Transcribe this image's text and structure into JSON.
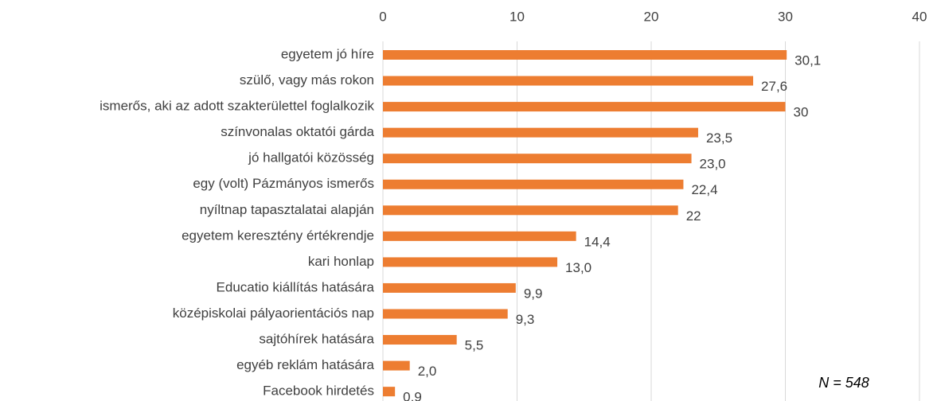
{
  "chart_data": {
    "type": "bar",
    "orientation": "horizontal",
    "categories": [
      "egyetem jó híre",
      "szülő, vagy más rokon",
      "ismerős, aki az adott szakterülettel foglalkozik",
      "színvonalas oktatói gárda",
      "jó hallgatói közösség",
      "egy (volt) Pázmányos ismerős",
      "nyíltnap tapasztalatai alapján",
      "egyetem keresztény értékrendje",
      "kari honlap",
      "Educatio kiállítás hatására",
      "középiskolai pályaorientációs nap",
      "sajtóhírek hatására",
      "egyéb reklám hatására",
      "Facebook hirdetés"
    ],
    "values": [
      30.1,
      27.6,
      30,
      23.5,
      23.0,
      22.4,
      22,
      14.4,
      13.0,
      9.9,
      9.3,
      5.5,
      2.0,
      0.9
    ],
    "value_labels": [
      "30,1",
      "27,6",
      "30",
      "23,5",
      "23,0",
      "22,4",
      "22",
      "14,4",
      "13,0",
      "9,9",
      "9,3",
      "5,5",
      "2,0",
      "0,9"
    ],
    "color": "#ed7d31",
    "xlim": [
      0,
      40
    ],
    "xticks": [
      0,
      10,
      20,
      30,
      40
    ],
    "grid": true,
    "annotation": "N = 548"
  }
}
